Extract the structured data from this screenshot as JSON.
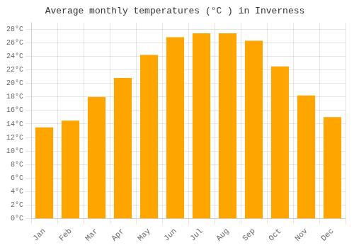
{
  "chart_data": {
    "type": "bar",
    "title": "Average monthly temperatures (°C ) in Inverness",
    "categories": [
      "Jan",
      "Feb",
      "Mar",
      "Apr",
      "May",
      "Jun",
      "Jul",
      "Aug",
      "Sep",
      "Oct",
      "Nov",
      "Dec"
    ],
    "values": [
      13.5,
      14.5,
      18.0,
      20.8,
      24.2,
      26.8,
      27.4,
      27.4,
      26.3,
      22.5,
      18.2,
      15.0
    ],
    "color": "#FFA500",
    "ylim": [
      0,
      29
    ],
    "yticks": [
      {
        "value": 0,
        "label": "0°C"
      },
      {
        "value": 2,
        "label": "2°C"
      },
      {
        "value": 4,
        "label": "4°C"
      },
      {
        "value": 6,
        "label": "6°C"
      },
      {
        "value": 8,
        "label": "8°C"
      },
      {
        "value": 10,
        "label": "10°C"
      },
      {
        "value": 12,
        "label": "12°C"
      },
      {
        "value": 14,
        "label": "14°C"
      },
      {
        "value": 16,
        "label": "16°C"
      },
      {
        "value": 18,
        "label": "18°C"
      },
      {
        "value": 20,
        "label": "20°C"
      },
      {
        "value": 22,
        "label": "22°C"
      },
      {
        "value": 24,
        "label": "24°C"
      },
      {
        "value": 26,
        "label": "26°C"
      },
      {
        "value": 28,
        "label": "28°C"
      }
    ],
    "grid": true
  }
}
